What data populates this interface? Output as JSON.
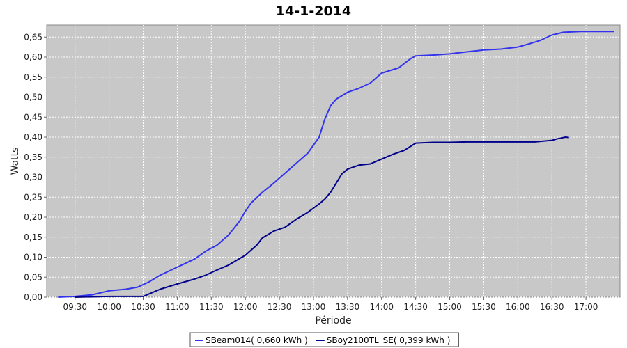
{
  "colors": {
    "plot_background": "#c8c8c8",
    "gridline": "#ffffff",
    "series_1": "#3333ee",
    "series_2": "#00008b"
  },
  "chart_data": {
    "type": "line",
    "title": "14-1-2014",
    "xlabel": "Période",
    "ylabel": "Watts",
    "grid": true,
    "legend_position": "bottom",
    "x_axis": {
      "type": "time",
      "range": [
        "09:05",
        "17:30"
      ],
      "ticks": [
        "09:30",
        "10:00",
        "10:30",
        "11:00",
        "11:30",
        "12:00",
        "12:30",
        "13:00",
        "13:30",
        "14:00",
        "14:30",
        "15:00",
        "15:30",
        "16:00",
        "16:30",
        "17:00"
      ]
    },
    "y_axis": {
      "range": [
        0,
        0.68
      ],
      "ticks": [
        "0,00",
        "0,05",
        "0,10",
        "0,15",
        "0,20",
        "0,25",
        "0,30",
        "0,35",
        "0,40",
        "0,45",
        "0,50",
        "0,55",
        "0,60",
        "0,65"
      ]
    },
    "series": [
      {
        "name": "SBeam014",
        "legend_label": "SBeam014( 0,660 kWh )",
        "color": "#3333ee",
        "points": [
          [
            "09:15",
            0.0
          ],
          [
            "09:30",
            0.002
          ],
          [
            "09:45",
            0.006
          ],
          [
            "10:00",
            0.016
          ],
          [
            "10:15",
            0.02
          ],
          [
            "10:25",
            0.025
          ],
          [
            "10:35",
            0.038
          ],
          [
            "10:45",
            0.055
          ],
          [
            "11:00",
            0.075
          ],
          [
            "11:15",
            0.095
          ],
          [
            "11:25",
            0.115
          ],
          [
            "11:35",
            0.13
          ],
          [
            "11:45",
            0.155
          ],
          [
            "11:55",
            0.19
          ],
          [
            "12:00",
            0.215
          ],
          [
            "12:05",
            0.235
          ],
          [
            "12:15",
            0.262
          ],
          [
            "12:25",
            0.285
          ],
          [
            "12:35",
            0.31
          ],
          [
            "12:45",
            0.335
          ],
          [
            "12:55",
            0.36
          ],
          [
            "13:05",
            0.4
          ],
          [
            "13:10",
            0.445
          ],
          [
            "13:15",
            0.478
          ],
          [
            "13:20",
            0.495
          ],
          [
            "13:30",
            0.512
          ],
          [
            "13:40",
            0.522
          ],
          [
            "13:50",
            0.535
          ],
          [
            "14:00",
            0.56
          ],
          [
            "14:15",
            0.573
          ],
          [
            "14:25",
            0.595
          ],
          [
            "14:30",
            0.603
          ],
          [
            "14:45",
            0.605
          ],
          [
            "15:00",
            0.608
          ],
          [
            "15:15",
            0.613
          ],
          [
            "15:30",
            0.618
          ],
          [
            "15:45",
            0.62
          ],
          [
            "16:00",
            0.625
          ],
          [
            "16:10",
            0.633
          ],
          [
            "16:20",
            0.642
          ],
          [
            "16:30",
            0.655
          ],
          [
            "16:40",
            0.662
          ],
          [
            "16:55",
            0.664
          ],
          [
            "17:15",
            0.664
          ],
          [
            "17:25",
            0.664
          ]
        ]
      },
      {
        "name": "SBoy2100TL_SE",
        "legend_label": "SBoy2100TL_SE( 0,399 kWh )",
        "color": "#00008b",
        "points": [
          [
            "09:30",
            0.0
          ],
          [
            "10:00",
            0.002
          ],
          [
            "10:30",
            0.002
          ],
          [
            "10:35",
            0.008
          ],
          [
            "10:45",
            0.02
          ],
          [
            "11:00",
            0.033
          ],
          [
            "11:15",
            0.045
          ],
          [
            "11:25",
            0.055
          ],
          [
            "11:35",
            0.068
          ],
          [
            "11:45",
            0.08
          ],
          [
            "12:00",
            0.105
          ],
          [
            "12:10",
            0.13
          ],
          [
            "12:15",
            0.148
          ],
          [
            "12:25",
            0.165
          ],
          [
            "12:35",
            0.175
          ],
          [
            "12:45",
            0.195
          ],
          [
            "12:55",
            0.212
          ],
          [
            "13:05",
            0.233
          ],
          [
            "13:10",
            0.245
          ],
          [
            "13:15",
            0.262
          ],
          [
            "13:20",
            0.285
          ],
          [
            "13:25",
            0.308
          ],
          [
            "13:30",
            0.32
          ],
          [
            "13:40",
            0.33
          ],
          [
            "13:50",
            0.333
          ],
          [
            "14:00",
            0.345
          ],
          [
            "14:10",
            0.357
          ],
          [
            "14:20",
            0.367
          ],
          [
            "14:30",
            0.385
          ],
          [
            "14:45",
            0.387
          ],
          [
            "15:00",
            0.387
          ],
          [
            "15:15",
            0.388
          ],
          [
            "15:30",
            0.388
          ],
          [
            "15:45",
            0.388
          ],
          [
            "16:00",
            0.388
          ],
          [
            "16:15",
            0.388
          ],
          [
            "16:30",
            0.392
          ],
          [
            "16:35",
            0.396
          ],
          [
            "16:42",
            0.4
          ],
          [
            "16:45",
            0.399
          ]
        ]
      }
    ]
  }
}
